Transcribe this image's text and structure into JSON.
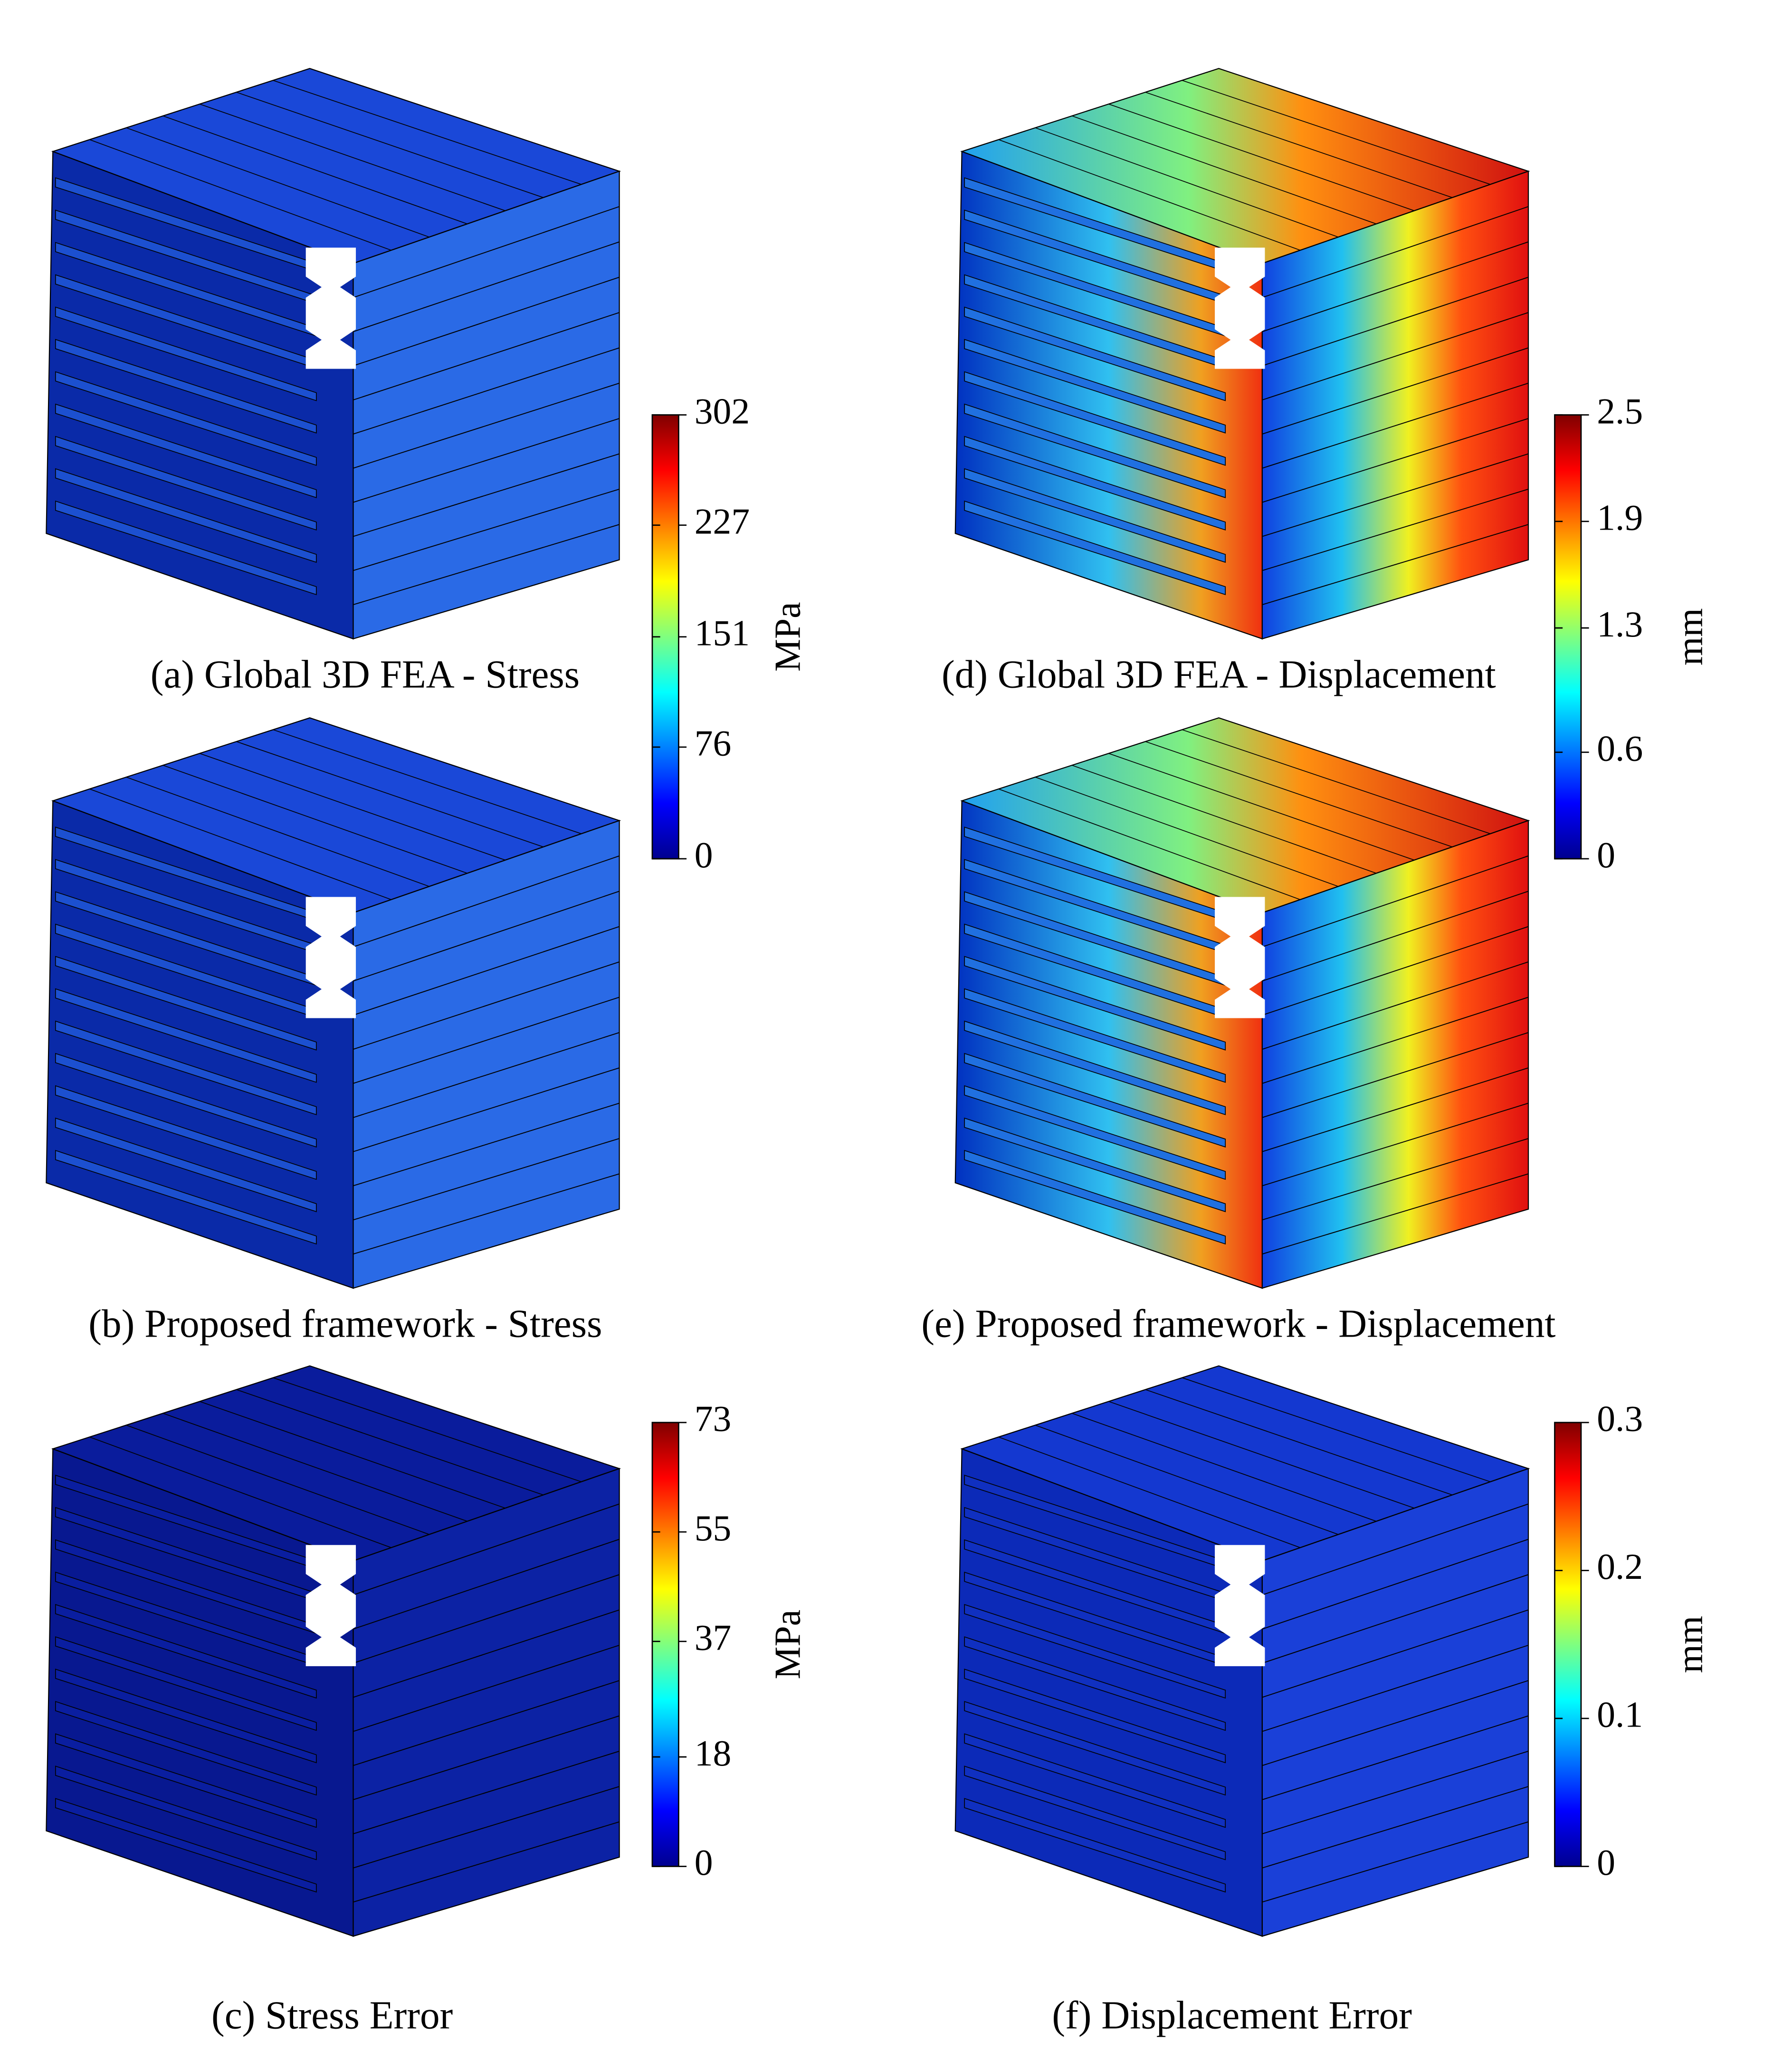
{
  "panels": [
    {
      "caption": "(a) Global 3D FEA - Stress"
    },
    {
      "caption": "(b) Proposed framework - Stress"
    },
    {
      "caption": "(c) Stress Error"
    },
    {
      "caption": "(d) Global 3D FEA - Displacement"
    },
    {
      "caption": "(e) Proposed framework - Displacement"
    },
    {
      "caption": "(f) Displacement Error"
    }
  ],
  "colorbars": [
    {
      "label": "MPa",
      "lim": [
        0,
        302
      ],
      "ticks": [
        0,
        76,
        151,
        227,
        302
      ]
    },
    {
      "label": "mm",
      "lim": [
        0,
        2.5
      ],
      "ticks": [
        0,
        0.6,
        1.3,
        1.9,
        2.5
      ]
    },
    {
      "label": "MPa",
      "lim": [
        0,
        73
      ],
      "ticks": [
        0,
        18,
        37,
        55,
        73
      ]
    },
    {
      "label": "mm",
      "lim": [
        0,
        0.3
      ],
      "ticks": [
        0,
        0.1,
        0.2,
        0.3
      ]
    }
  ]
}
